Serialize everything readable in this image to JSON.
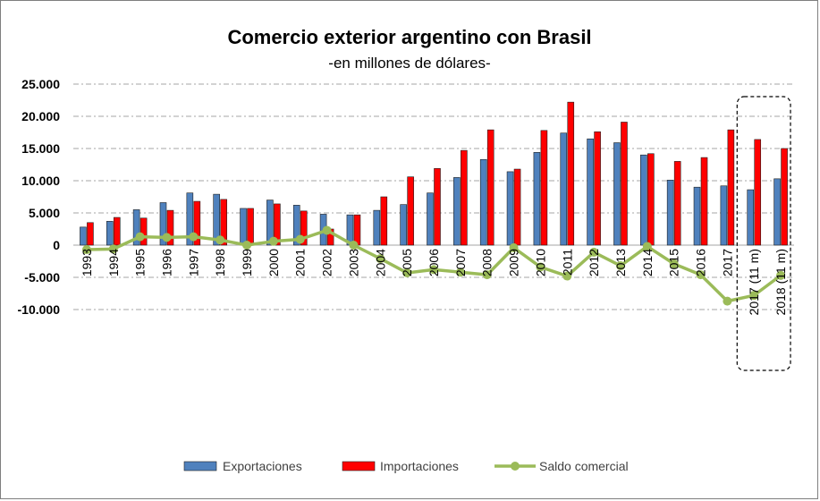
{
  "chart_data": {
    "type": "bar",
    "title": "Comercio exterior argentino con Brasil",
    "subtitle": "-en millones de dólares-",
    "categories": [
      "1993",
      "1994",
      "1995",
      "1996",
      "1997",
      "1998",
      "1999",
      "2000",
      "2001",
      "2002",
      "2003",
      "2004",
      "2005",
      "2006",
      "2007",
      "2008",
      "2009",
      "2010",
      "2011",
      "2012",
      "2013",
      "2014",
      "2015",
      "2016",
      "2017",
      "2017 (11 m)",
      "2018 (11 m)"
    ],
    "series": [
      {
        "name": "Exportaciones",
        "type": "bar",
        "color": "#4f81bd",
        "values": [
          2800,
          3700,
          5500,
          6600,
          8100,
          7900,
          5700,
          7000,
          6200,
          4800,
          4700,
          5400,
          6300,
          8100,
          10500,
          13300,
          11400,
          14400,
          17400,
          16500,
          15900,
          14000,
          10100,
          9000,
          9200,
          8600,
          10300
        ]
      },
      {
        "name": "Importaciones",
        "type": "bar",
        "color": "#ff0000",
        "values": [
          3500,
          4300,
          4200,
          5400,
          6800,
          7100,
          5700,
          6400,
          5300,
          2500,
          4700,
          7500,
          10600,
          11900,
          14700,
          17900,
          11800,
          17800,
          22200,
          17600,
          19100,
          14200,
          13000,
          13600,
          17900,
          16400,
          15000
        ]
      },
      {
        "name": "Saldo comercial",
        "type": "line",
        "color": "#9bbb59",
        "values": [
          -700,
          -600,
          1300,
          1200,
          1300,
          800,
          0,
          600,
          900,
          2300,
          0,
          -2100,
          -4300,
          -3800,
          -4200,
          -4600,
          -400,
          -3400,
          -4800,
          -1100,
          -3200,
          -200,
          -2900,
          -4600,
          -8700,
          -7800,
          -4700
        ]
      }
    ],
    "ylim": [
      -10000,
      25000
    ],
    "yticks": [
      "25.000",
      "20.000",
      "15.000",
      "10.000",
      "5.000",
      "0",
      "-5.000",
      "-10.000"
    ],
    "ytick_values": [
      25000,
      20000,
      15000,
      10000,
      5000,
      0,
      -5000,
      -10000
    ],
    "grid": true,
    "legend_position": "bottom",
    "highlight_categories": [
      "2017 (11 m)",
      "2018 (11 m)"
    ]
  }
}
